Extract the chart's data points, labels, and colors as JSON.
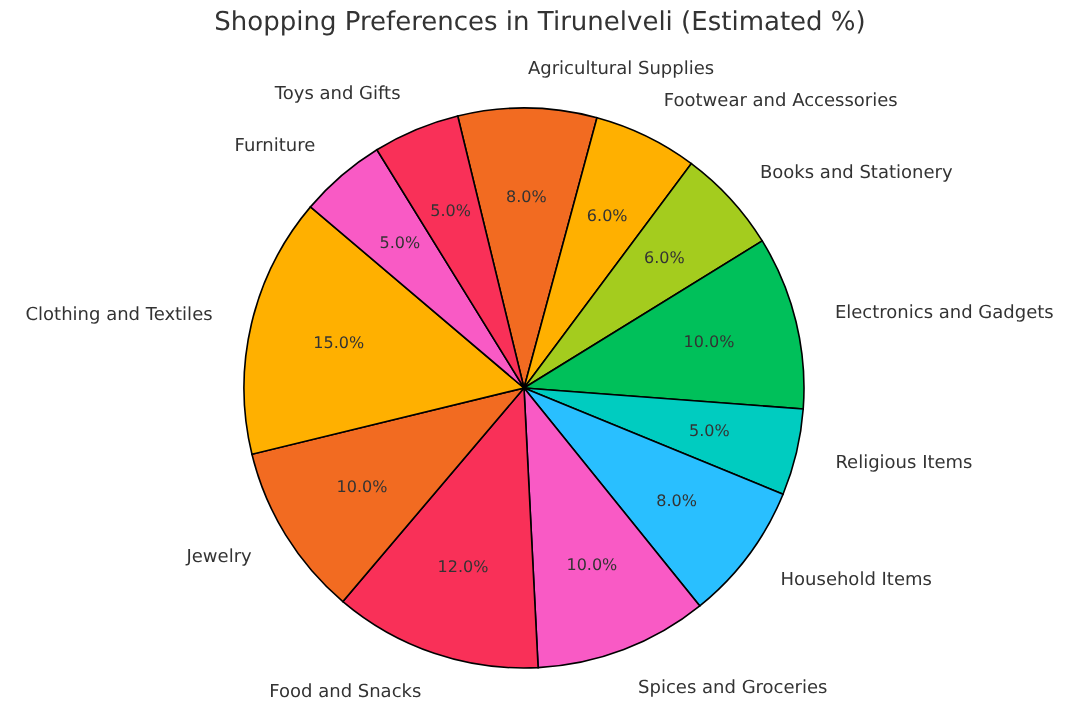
{
  "chart_data": {
    "type": "pie",
    "title": "Shopping Preferences in Tirunelveli (Estimated %)",
    "categories": [
      "Agricultural Supplies",
      "Footwear and Accessories",
      "Books and Stationery",
      "Electronics and Gadgets",
      "Religious Items",
      "Household Items",
      "Spices and Groceries",
      "Food and Snacks",
      "Jewelry",
      "Clothing and Textiles",
      "Furniture",
      "Toys and Gifts"
    ],
    "values": [
      8,
      6,
      6,
      10,
      5,
      8,
      10,
      12,
      10,
      15,
      5,
      5
    ],
    "value_labels": [
      "8.0%",
      "6.0%",
      "6.0%",
      "10.0%",
      "5.0%",
      "8.0%",
      "10.0%",
      "12.0%",
      "10.0%",
      "15.0%",
      "5.0%",
      "5.0%"
    ],
    "colors": [
      "#f26b21",
      "#ffb000",
      "#a4cc1e",
      "#00c05a",
      "#00ccc0",
      "#29bfff",
      "#f95ac5",
      "#f93058",
      "#f26b21",
      "#ffb000",
      "#f95ac5",
      "#f93058"
    ]
  }
}
